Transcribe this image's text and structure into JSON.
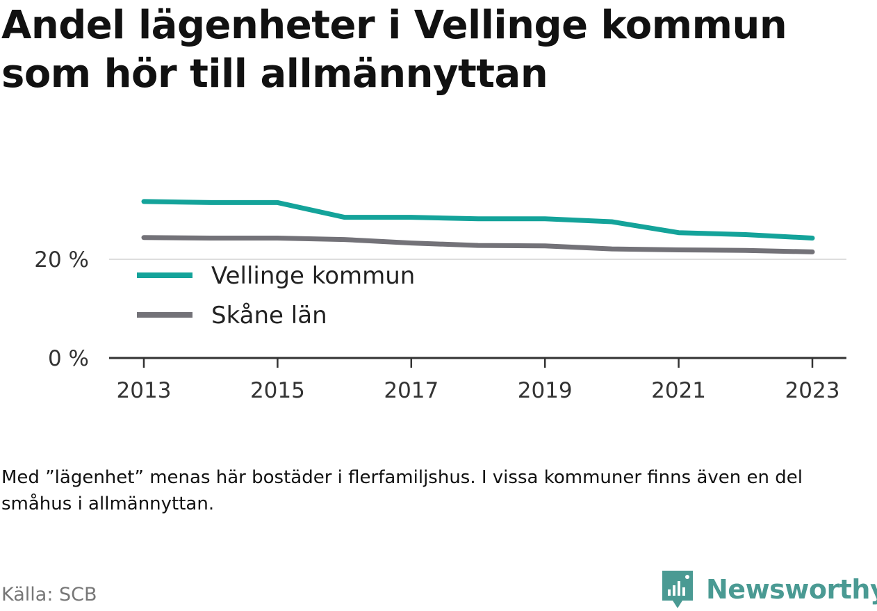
{
  "title": "Andel lägenheter i Vellinge kommun som hör till allmännyttan",
  "note": "Med ”lägenhet” menas här bostäder i flerfamiljshus. I vissa kommuner finns även en del småhus i allmännyttan.",
  "source": "Källa: SCB",
  "brand": {
    "name": "Newsworthy",
    "color": "#4a9a93"
  },
  "chart_data": {
    "type": "line",
    "title": "Andel lägenheter i Vellinge kommun som hör till allmännyttan",
    "xlabel": "",
    "ylabel": "",
    "x": [
      2013,
      2014,
      2015,
      2016,
      2017,
      2018,
      2019,
      2020,
      2021,
      2022,
      2023
    ],
    "xticks": [
      2013,
      2015,
      2017,
      2019,
      2021,
      2023
    ],
    "yticks": [
      0,
      20
    ],
    "ytick_labels": [
      "0 %",
      "20 %"
    ],
    "ylim": [
      0,
      35
    ],
    "grid": "horizontal",
    "legend_position": "inside-left",
    "series": [
      {
        "name": "Vellinge kommun",
        "color": "#14a39a",
        "values": [
          31.7,
          31.5,
          31.5,
          28.5,
          28.5,
          28.2,
          28.2,
          27.6,
          25.4,
          25.0,
          24.3
        ]
      },
      {
        "name": "Skåne län",
        "color": "#737278",
        "values": [
          24.4,
          24.3,
          24.3,
          24.0,
          23.3,
          22.8,
          22.7,
          22.1,
          21.9,
          21.8,
          21.5
        ]
      }
    ]
  }
}
